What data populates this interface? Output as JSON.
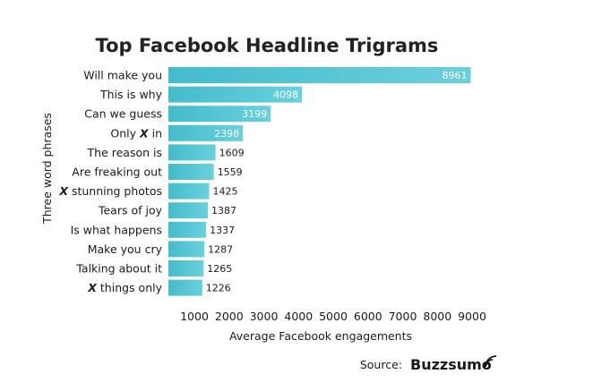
{
  "chart_data": {
    "type": "bar",
    "orientation": "horizontal",
    "title": "Top Facebook Headline Trigrams",
    "xlabel": "Average Facebook engagements",
    "ylabel": "Three word phrases",
    "categories": [
      "Will make you",
      "This is why",
      "Can we guess",
      "Only X in",
      "The reason is",
      "Are freaking out",
      "X stunning photos",
      "Tears of joy",
      "Is what happens",
      "Make you cry",
      "Talking about it",
      "X things only"
    ],
    "values": [
      8961,
      4098,
      3199,
      2398,
      1609,
      1559,
      1425,
      1387,
      1337,
      1287,
      1265,
      1226
    ],
    "xticks": [
      1000,
      2000,
      3000,
      4000,
      5000,
      6000,
      7000,
      8000,
      9000
    ],
    "xlim": [
      400,
      9000
    ],
    "grid": false,
    "legend": "none",
    "bar_color": "#44bccb",
    "bar_color_light": "#6ad0dc"
  },
  "source": {
    "label": "Source:",
    "brand": "Buzzsumo"
  }
}
